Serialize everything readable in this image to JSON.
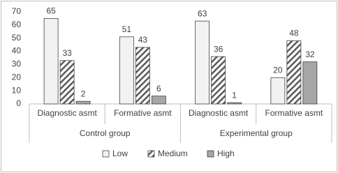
{
  "chart_data": {
    "type": "bar",
    "categories": [
      "Diagnostic asmt",
      "Formative asmt",
      "Diagnostic asmt",
      "Formative asmt"
    ],
    "groups": [
      "Control group",
      "Experimental group"
    ],
    "series": [
      {
        "name": "Low",
        "color": "#f2f2f2",
        "values": [
          65,
          51,
          63,
          20
        ]
      },
      {
        "name": "Medium",
        "color": "#595959",
        "pattern": "hatch",
        "values": [
          33,
          43,
          36,
          48
        ]
      },
      {
        "name": "High",
        "color": "#a6a6a6",
        "values": [
          2,
          6,
          1,
          32
        ]
      }
    ],
    "ylim": [
      0,
      70
    ],
    "yticks": [
      0,
      10,
      20,
      30,
      40,
      50,
      60,
      70
    ],
    "grid": false,
    "legend": "bottom"
  }
}
